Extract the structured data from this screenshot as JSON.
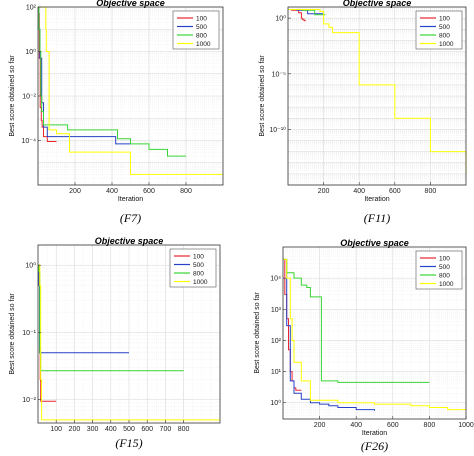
{
  "chart_data": [
    {
      "type": "line",
      "title": "Objective space",
      "caption": "(F7)",
      "xlabel": "Iteration",
      "ylabel": "Best score obtained so far",
      "yscale": "log",
      "xlim": [
        0,
        1000
      ],
      "ylim": [
        1e-06,
        100
      ],
      "xticks": [
        200,
        400,
        600,
        800
      ],
      "yticks": [
        {
          "value": 100,
          "label": "10²"
        },
        {
          "value": 1,
          "label": "10⁰"
        },
        {
          "value": 0.01,
          "label": "10⁻²"
        },
        {
          "value": 0.0001,
          "label": "10⁻⁴"
        }
      ],
      "grid": true,
      "legend_position": "top-right",
      "series": [
        {
          "name": "100",
          "color": "#e8262d",
          "x": [
            1,
            4,
            7,
            12,
            18,
            22,
            30,
            50,
            60,
            100
          ],
          "y": [
            100,
            50,
            0.5,
            0.003,
            0.0008,
            0.0004,
            0.00015,
            9e-05,
            9e-05,
            9e-05
          ]
        },
        {
          "name": "500",
          "color": "#2641c7",
          "x": [
            1,
            5,
            10,
            20,
            30,
            50,
            100,
            180,
            400,
            420,
            500
          ],
          "y": [
            100,
            10,
            0.5,
            0.005,
            0.0004,
            0.00015,
            0.00015,
            0.00015,
            0.00015,
            7e-05,
            7e-05
          ]
        },
        {
          "name": "800",
          "color": "#38d435",
          "x": [
            1,
            5,
            10,
            15,
            20,
            30,
            50,
            100,
            160,
            400,
            430,
            500,
            600,
            650,
            700,
            800
          ],
          "y": [
            100,
            10,
            1,
            0.01,
            0.002,
            0.0005,
            0.0005,
            0.0005,
            0.0003,
            0.0003,
            0.00012,
            7e-05,
            4e-05,
            4e-05,
            2e-05,
            2e-05
          ]
        },
        {
          "name": "1000",
          "color": "#ffff00",
          "x": [
            1,
            40,
            42,
            45,
            60,
            100,
            170,
            400,
            500,
            700,
            1000
          ],
          "y": [
            100,
            100,
            10,
            1,
            0.0003,
            0.0002,
            3e-05,
            3e-05,
            3e-06,
            3e-06,
            3e-06
          ]
        }
      ]
    },
    {
      "type": "line",
      "title": "Objective space",
      "caption": "(F11)",
      "xlabel": "Iteration",
      "ylabel": "Best score obtained so far",
      "yscale": "log",
      "xlim": [
        0,
        1000
      ],
      "ylim": [
        1e-15,
        10
      ],
      "xticks": [
        200,
        400,
        600,
        800
      ],
      "yticks": [
        {
          "value": 1,
          "label": "10⁰"
        },
        {
          "value": 1e-05,
          "label": "10⁻⁵"
        },
        {
          "value": 1e-10,
          "label": "10⁻¹⁰"
        }
      ],
      "grid": true,
      "legend_position": "top-right",
      "series": [
        {
          "name": "100",
          "color": "#e8262d",
          "x": [
            1,
            20,
            40,
            60,
            75,
            80,
            90,
            100
          ],
          "y": [
            6,
            5,
            5,
            3,
            1,
            0.8,
            0.6,
            0.6
          ]
        },
        {
          "name": "500",
          "color": "#2641c7",
          "x": [
            1,
            50,
            90,
            110,
            120,
            200
          ],
          "y": [
            6,
            5,
            5,
            2.5,
            2.5,
            2.5
          ]
        },
        {
          "name": "800",
          "color": "#38d435",
          "x": [
            1,
            80,
            100,
            150,
            180,
            200,
            210
          ],
          "y": [
            6,
            5,
            5,
            2,
            2,
            2,
            2
          ]
        },
        {
          "name": "1000",
          "color": "#ffff00",
          "x": [
            1,
            150,
            180,
            200,
            230,
            250,
            400,
            600,
            800,
            1000
          ],
          "y": [
            6,
            6,
            4,
            0.3,
            0.15,
            0.05,
            1e-06,
            1e-09,
            1e-12,
            1e-14
          ]
        }
      ]
    },
    {
      "type": "line",
      "title": "Objective space",
      "caption": "(F15)",
      "xlabel": "",
      "ylabel": "Best score obtained so far",
      "yscale": "log",
      "xlim": [
        0,
        1000
      ],
      "ylim": [
        0.0045,
        2
      ],
      "xticks": [
        100,
        200,
        300,
        400,
        500,
        600,
        700,
        800
      ],
      "yticks": [
        {
          "value": 1,
          "label": "10⁰"
        },
        {
          "value": 0.1,
          "label": "10⁻¹"
        },
        {
          "value": 0.01,
          "label": "10⁻²"
        }
      ],
      "grid": true,
      "legend_position": "top-right",
      "series": [
        {
          "name": "100",
          "color": "#e8262d",
          "x": [
            1,
            8,
            12,
            15,
            100
          ],
          "y": [
            1,
            0.05,
            0.02,
            0.0095,
            0.0095
          ]
        },
        {
          "name": "500",
          "color": "#2641c7",
          "x": [
            1,
            5,
            8,
            10,
            500
          ],
          "y": [
            1,
            0.5,
            0.06,
            0.05,
            0.05
          ]
        },
        {
          "name": "800",
          "color": "#38d435",
          "x": [
            1,
            5,
            10,
            15,
            800
          ],
          "y": [
            1,
            0.8,
            0.05,
            0.027,
            0.027
          ]
        },
        {
          "name": "1000",
          "color": "#ffff00",
          "x": [
            1,
            10,
            15,
            20,
            1000
          ],
          "y": [
            1,
            0.5,
            0.02,
            0.005,
            0.005
          ]
        }
      ]
    },
    {
      "type": "line",
      "title": "Objective space",
      "caption": "(F26)",
      "xlabel": "Iteration",
      "ylabel": "Best score obtained so far",
      "yscale": "log",
      "xlim": [
        0,
        1000
      ],
      "ylim": [
        0.3,
        100000
      ],
      "xticks": [
        200,
        400,
        600,
        800,
        1000
      ],
      "yticks": [
        {
          "value": 10000,
          "label": "10⁴"
        },
        {
          "value": 1000,
          "label": "10³"
        },
        {
          "value": 100,
          "label": "10²"
        },
        {
          "value": 10,
          "label": "10¹"
        },
        {
          "value": 1,
          "label": "10⁰"
        }
      ],
      "grid": true,
      "legend_position": "top-right",
      "series": [
        {
          "name": "100",
          "color": "#e8262d",
          "x": [
            1,
            10,
            20,
            30,
            40,
            50,
            60,
            70,
            100
          ],
          "y": [
            40000,
            3000,
            500,
            50,
            10,
            5,
            3,
            2.5,
            2.5
          ]
        },
        {
          "name": "500",
          "color": "#2641c7",
          "x": [
            1,
            20,
            40,
            60,
            100,
            150,
            200,
            250,
            300,
            400,
            500
          ],
          "y": [
            40000,
            300,
            5,
            2,
            1.3,
            1,
            0.9,
            0.8,
            0.7,
            0.6,
            0.55
          ]
        },
        {
          "name": "800",
          "color": "#38d435",
          "x": [
            1,
            20,
            40,
            60,
            100,
            130,
            150,
            170,
            200,
            210,
            300,
            500,
            800
          ],
          "y": [
            40000,
            15000,
            15000,
            10000,
            6000,
            5000,
            2500,
            2500,
            2500,
            5,
            4.5,
            4.5,
            4.5
          ]
        },
        {
          "name": "1000",
          "color": "#ffff00",
          "x": [
            1,
            20,
            40,
            50,
            60,
            100,
            150,
            300,
            500,
            700,
            800,
            900,
            1000
          ],
          "y": [
            40000,
            10000,
            500,
            100,
            20,
            5,
            1.2,
            1,
            0.9,
            0.8,
            0.7,
            0.6,
            0.6
          ]
        }
      ]
    }
  ]
}
